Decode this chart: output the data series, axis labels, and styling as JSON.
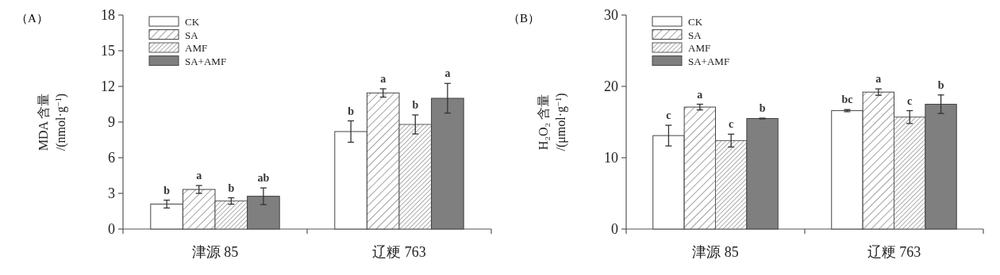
{
  "chart_data": [
    {
      "type": "bar",
      "title": "（A）",
      "ylabel": "MDA 含量\n/(nmol·g$^{−1}$)",
      "categories": [
        "津源 85",
        "辽粳 763"
      ],
      "ylim": [
        0,
        18
      ],
      "yticks": [
        0,
        3,
        6,
        9,
        12,
        15,
        18
      ],
      "legend": "top left",
      "grid": false,
      "series": [
        {
          "name": "CK",
          "color": "#ffffff",
          "values": [
            2.1,
            8.2
          ],
          "errors": [
            0.33,
            0.9
          ],
          "value_labels": [
            "b",
            "b"
          ]
        },
        {
          "name": "SA",
          "color": "#444444",
          "values": [
            3.33,
            11.45
          ],
          "errors": [
            0.33,
            0.35
          ],
          "value_labels": [
            "a",
            "a"
          ]
        },
        {
          "name": "AMF",
          "color": "#5a5a5a",
          "values": [
            2.36,
            8.8
          ],
          "errors": [
            0.27,
            0.8
          ],
          "value_labels": [
            "b",
            "b"
          ]
        },
        {
          "name": "SA+AMF",
          "color": "#7f7f7f",
          "values": [
            2.76,
            11.0
          ],
          "errors": [
            0.7,
            1.25
          ],
          "value_labels": [
            "ab",
            "a"
          ]
        }
      ]
    },
    {
      "type": "bar",
      "title": "（B）",
      "ylabel": "H₂O₂ 含量\n/(μmol·g$^{−1}$)",
      "categories": [
        "津源 85",
        "辽粳 763"
      ],
      "ylim": [
        0,
        30
      ],
      "yticks": [
        0,
        10,
        20,
        30
      ],
      "legend": "top left",
      "grid": false,
      "series": [
        {
          "name": "CK",
          "color": "#ffffff",
          "values": [
            13.1,
            16.6
          ],
          "errors": [
            1.45,
            0.15
          ],
          "value_labels": [
            "c",
            "bc"
          ]
        },
        {
          "name": "SA",
          "color": "#444444",
          "values": [
            17.1,
            19.2
          ],
          "errors": [
            0.4,
            0.45
          ],
          "value_labels": [
            "a",
            "a"
          ]
        },
        {
          "name": "AMF",
          "color": "#5a5a5a",
          "values": [
            12.4,
            15.7
          ],
          "errors": [
            0.9,
            0.9
          ],
          "value_labels": [
            "c",
            "c"
          ]
        },
        {
          "name": "SA+AMF",
          "color": "#7f7f7f",
          "values": [
            15.5,
            17.5
          ],
          "errors": [
            0.05,
            1.3
          ],
          "value_labels": [
            "b",
            "b"
          ]
        }
      ]
    }
  ]
}
